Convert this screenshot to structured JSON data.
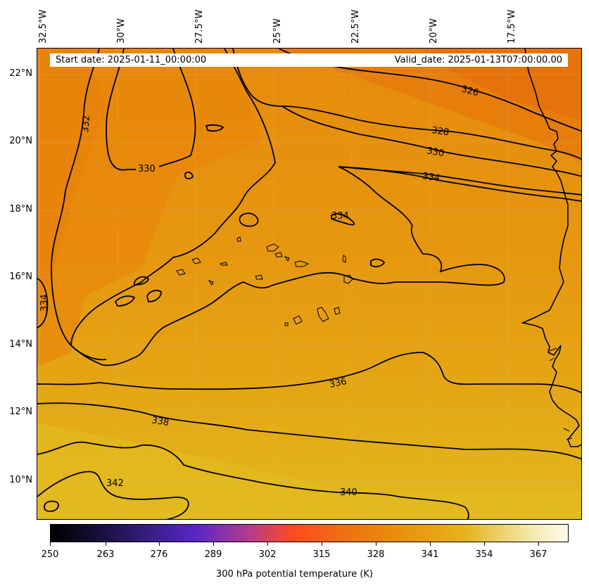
{
  "map": {
    "start_date": "Start date: 2025-01-11_00:00:00",
    "valid_date": "Valid_date: 2025-01-13T07:00:00.00",
    "longitude_labels": [
      "32.5°W",
      "30°W",
      "27.5°W",
      "25°W",
      "22.5°W",
      "20°W",
      "17.5°W"
    ],
    "latitude_labels": [
      "22°N",
      "20°N",
      "18°N",
      "16°N",
      "14°N",
      "12°N",
      "10°N"
    ],
    "contour_labels": [
      "332",
      "330",
      "326",
      "328",
      "330",
      "334",
      "334",
      "334",
      "336",
      "338",
      "342",
      "340"
    ],
    "colorbar": {
      "title": "300 hPa potential temperature (K)",
      "ticks": [
        "250",
        "263",
        "276",
        "289",
        "302",
        "315",
        "328",
        "341",
        "354",
        "367"
      ],
      "range": [
        250,
        373
      ]
    },
    "colors": {
      "warm_orange": "#e8820a",
      "mid_orange": "#e69610",
      "yellow_orange": "#e2b51c"
    }
  }
}
